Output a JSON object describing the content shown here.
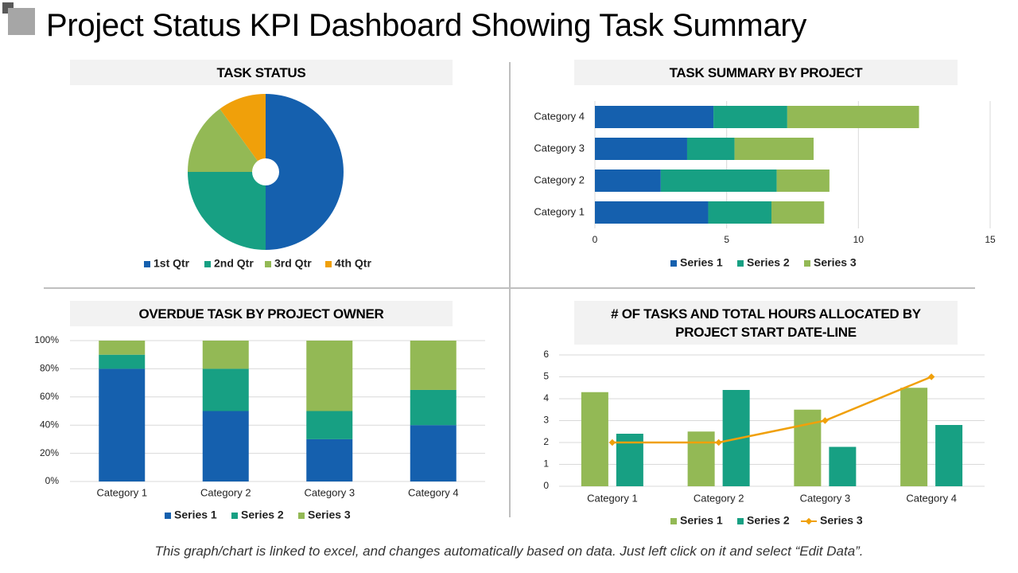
{
  "title": "Project Status KPI Dashboard Showing Task Summary",
  "footnote": "This graph/chart is linked to excel, and changes automatically based on data. Just left click on it and select “Edit Data”.",
  "colors": {
    "blue": "#1560ae",
    "teal": "#17a083",
    "green": "#93b955",
    "orange": "#f0a00a",
    "panel": "#f2f2f2",
    "grid": "#d9d9d9"
  },
  "chart_data": [
    {
      "id": "task-status",
      "type": "pie",
      "title": "TASK STATUS",
      "categories": [
        "1st Qtr",
        "2nd Qtr",
        "3rd Qtr",
        "4th Qtr"
      ],
      "values": [
        50,
        25,
        15,
        10
      ],
      "colors": [
        "#1560ae",
        "#17a083",
        "#93b955",
        "#f0a00a"
      ],
      "legend": "bottom"
    },
    {
      "id": "task-summary",
      "type": "bar",
      "orientation": "horizontal",
      "stacked": true,
      "title": "TASK SUMMARY BY PROJECT",
      "categories": [
        "Category 1",
        "Category 2",
        "Category 3",
        "Category 4"
      ],
      "series": [
        {
          "name": "Series 1",
          "values": [
            4.3,
            2.5,
            3.5,
            4.5
          ]
        },
        {
          "name": "Series 2",
          "values": [
            2.4,
            4.4,
            1.8,
            2.8
          ]
        },
        {
          "name": "Series 3",
          "values": [
            2.0,
            2.0,
            3.0,
            5.0
          ]
        }
      ],
      "xlim": [
        0,
        15
      ],
      "xticks": [
        "0",
        "5",
        "10",
        "15"
      ],
      "legend": "bottom"
    },
    {
      "id": "overdue-task",
      "type": "bar",
      "stacked": true,
      "percent": true,
      "title": "OVERDUE TASK BY PROJECT OWNER",
      "categories": [
        "Category 1",
        "Category 2",
        "Category 3",
        "Category 4"
      ],
      "series": [
        {
          "name": "Series 1",
          "values": [
            80,
            50,
            30,
            40
          ]
        },
        {
          "name": "Series 2",
          "values": [
            10,
            30,
            20,
            25
          ]
        },
        {
          "name": "Series 3",
          "values": [
            10,
            20,
            50,
            35
          ]
        }
      ],
      "ylim": [
        0,
        100
      ],
      "yticks": [
        "0%",
        "20%",
        "40%",
        "60%",
        "80%",
        "100%"
      ],
      "legend": "bottom"
    },
    {
      "id": "tasks-hours",
      "type": "bar",
      "title": "# OF TASKS AND TOTAL HOURS ALLOCATED BY PROJECT START DATE-LINE",
      "categories": [
        "Category 1",
        "Category 2",
        "Category 3",
        "Category 4"
      ],
      "series": [
        {
          "name": "Series 1",
          "type": "bar",
          "values": [
            4.3,
            2.5,
            3.5,
            4.5
          ]
        },
        {
          "name": "Series 2",
          "type": "bar",
          "values": [
            2.4,
            4.4,
            1.8,
            2.8
          ]
        },
        {
          "name": "Series 3",
          "type": "line",
          "values": [
            2,
            2,
            3,
            5
          ]
        }
      ],
      "ylim": [
        0,
        6
      ],
      "yticks": [
        "0",
        "1",
        "2",
        "3",
        "4",
        "5",
        "6"
      ],
      "legend": "bottom"
    }
  ]
}
